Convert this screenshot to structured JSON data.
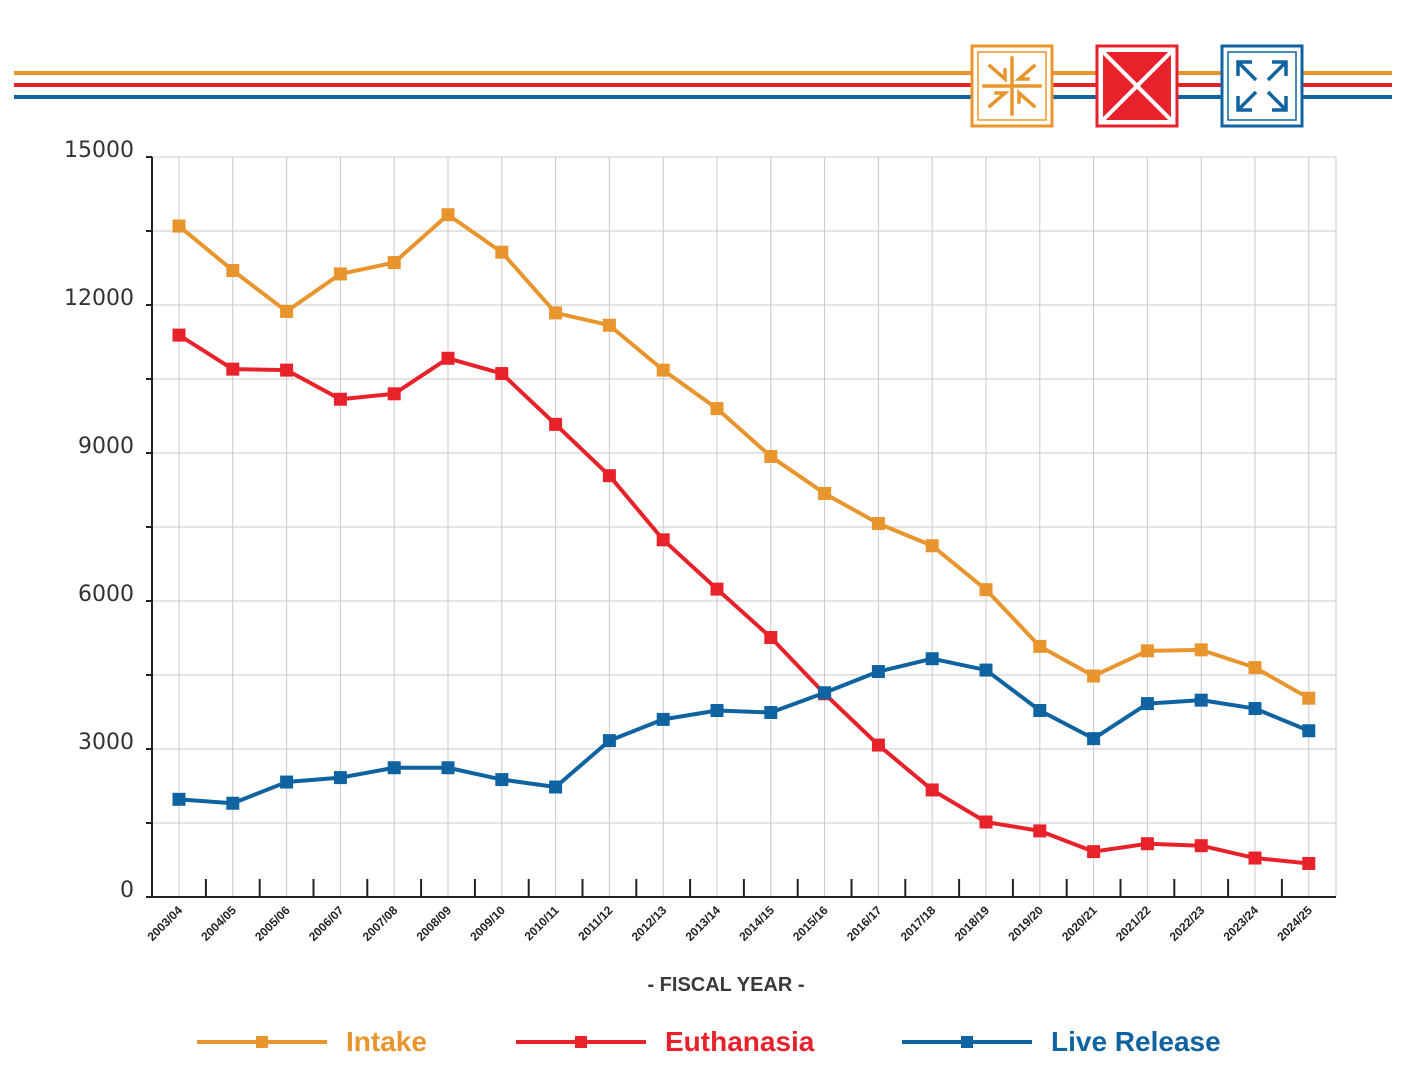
{
  "chart_data": {
    "type": "line",
    "title": "",
    "xlabel": "- FISCAL YEAR -",
    "ylabel": "",
    "ylim": [
      0,
      15000
    ],
    "yticks": [
      0,
      3000,
      6000,
      9000,
      12000,
      15000
    ],
    "categories": [
      "2003/04",
      "2004/05",
      "2005/06",
      "2006/07",
      "2007/08",
      "2008/09",
      "2009/10",
      "2010/11",
      "2011/12",
      "2012/13",
      "2013/14",
      "2014/15",
      "2015/16",
      "2016/17",
      "2017/18",
      "2018/19",
      "2019/20",
      "2020/21",
      "2021/22",
      "2022/23",
      "2023/24",
      "2024/25"
    ],
    "series": [
      {
        "name": "Intake",
        "color": "#E8952E",
        "values": [
          13600,
          12700,
          11870,
          12630,
          12860,
          13830,
          13070,
          11840,
          11590,
          10680,
          9900,
          8930,
          8180,
          7570,
          7120,
          6230,
          5080,
          4480,
          4990,
          5010,
          4650,
          4030
        ]
      },
      {
        "name": "Euthanasia",
        "color": "#E8222B",
        "values": [
          11390,
          10700,
          10680,
          10090,
          10200,
          10920,
          10610,
          9580,
          8540,
          7240,
          6240,
          5260,
          4120,
          3080,
          2170,
          1520,
          1340,
          920,
          1080,
          1040,
          790,
          680
        ]
      },
      {
        "name": "Live Release",
        "color": "#0F63A0",
        "values": [
          1980,
          1900,
          2330,
          2420,
          2620,
          2620,
          2380,
          2230,
          3170,
          3600,
          3780,
          3740,
          4140,
          4570,
          4830,
          4600,
          3780,
          3210,
          3920,
          3990,
          3820,
          3370
        ]
      }
    ],
    "legend_position": "bottom",
    "grid": true
  },
  "header": {
    "line_colors": [
      "#E8952E",
      "#E8222B",
      "#0F63A0"
    ],
    "icons": [
      {
        "name": "intake-icon",
        "color": "#E8952E"
      },
      {
        "name": "euthanasia-icon",
        "color": "#E8222B"
      },
      {
        "name": "live-release-icon",
        "color": "#0F63A0"
      }
    ]
  }
}
